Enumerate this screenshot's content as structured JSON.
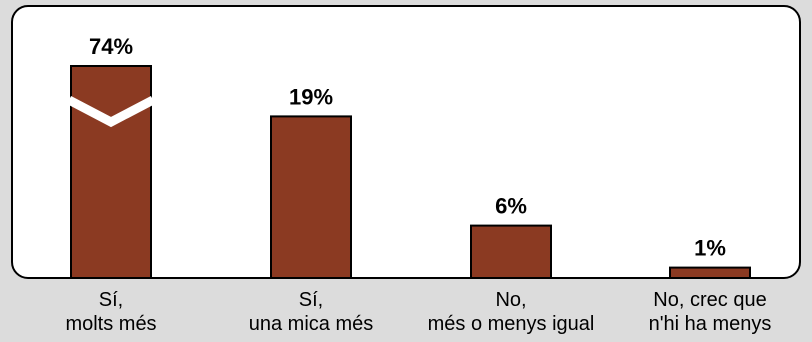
{
  "chart_data": {
    "type": "bar",
    "title": "",
    "xlabel": "",
    "ylabel": "",
    "ylim": [
      0,
      80
    ],
    "axis_break": true,
    "categories": [
      [
        "Sí,",
        "molts més"
      ],
      [
        "Sí,",
        "una mica més"
      ],
      [
        "No,",
        "més o menys igual"
      ],
      [
        "No, crec que",
        "n'hi ha menys"
      ]
    ],
    "values": [
      74,
      19,
      6,
      1
    ],
    "value_labels": [
      "74%",
      "19%",
      "6%",
      "1%"
    ],
    "colors": {
      "bar": "#8b3a22",
      "panel": "#ffffff",
      "background": "#dcdcdc"
    }
  }
}
